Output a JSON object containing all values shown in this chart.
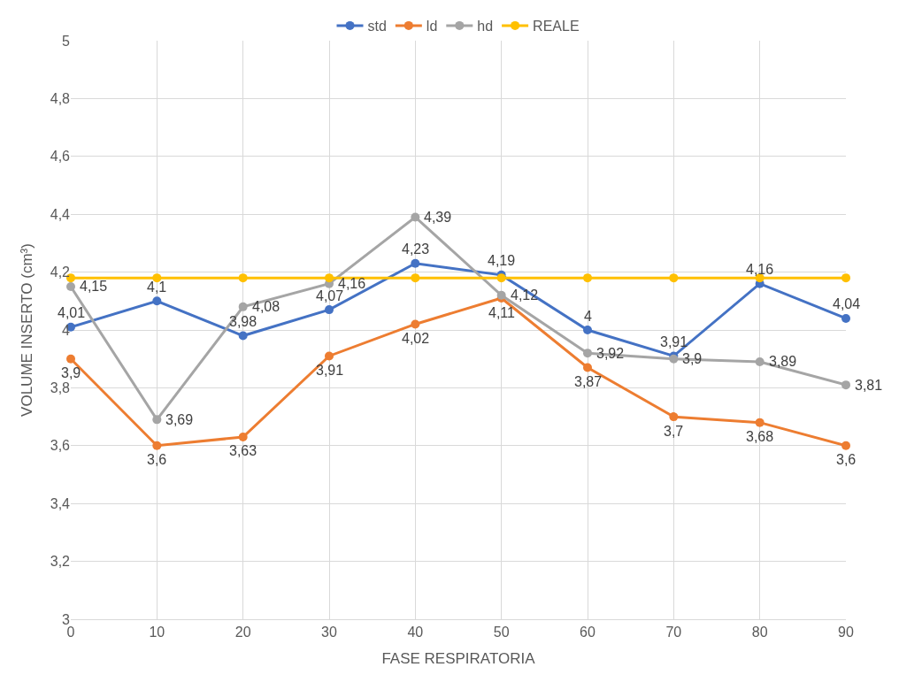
{
  "chart_data": {
    "type": "line",
    "xlabel": "FASE RESPIRATORIA",
    "ylabel": "VOLUME INSERTO (cm³)",
    "x": [
      0,
      10,
      20,
      30,
      40,
      50,
      60,
      70,
      80,
      90
    ],
    "series": [
      {
        "name": "std",
        "color": "#4472c4",
        "values": [
          4.01,
          4.1,
          3.98,
          4.07,
          4.23,
          4.19,
          4,
          3.91,
          4.16,
          4.04
        ],
        "value_labels": [
          "4,01",
          "4,1",
          "3,98",
          "4,07",
          "4,23",
          "4,19",
          "4",
          "3,91",
          "4,16",
          "4,04"
        ]
      },
      {
        "name": "ld",
        "color": "#ed7d31",
        "values": [
          3.9,
          3.6,
          3.63,
          3.91,
          4.02,
          4.11,
          3.87,
          3.7,
          3.68,
          3.6
        ],
        "value_labels": [
          "3,9",
          "3,6",
          "3,63",
          "3,91",
          "4,02",
          "4,11",
          "3,87",
          "3,7",
          "3,68",
          "3,6"
        ]
      },
      {
        "name": "hd",
        "color": "#a5a5a5",
        "values": [
          4.15,
          3.69,
          4.08,
          4.16,
          4.39,
          4.12,
          3.92,
          3.9,
          3.89,
          3.81
        ],
        "value_labels": [
          "4,15",
          "3,69",
          "4,08",
          "4,16",
          "4,39",
          "4,12",
          "3,92",
          "3,9",
          "3,89",
          "3,81"
        ]
      },
      {
        "name": "REALE",
        "color": "#ffc000",
        "values": [
          4.18,
          4.18,
          4.18,
          4.18,
          4.18,
          4.18,
          4.18,
          4.18,
          4.18,
          4.18
        ]
      }
    ],
    "xlim": [
      0,
      90
    ],
    "xticks": [
      0,
      10,
      20,
      30,
      40,
      50,
      60,
      70,
      80,
      90
    ],
    "ylim": [
      3,
      5
    ],
    "yticks": [
      3,
      {
        "value": 3.2,
        "label": "3,2"
      },
      {
        "value": 3.4,
        "label": "3,4"
      },
      {
        "value": 3.6,
        "label": "3,6"
      },
      {
        "value": 3.8,
        "label": "3,8"
      },
      4,
      {
        "value": 4.2,
        "label": "4,2"
      },
      {
        "value": 4.4,
        "label": "4,4"
      },
      {
        "value": 4.6,
        "label": "4,6"
      },
      {
        "value": 4.8,
        "label": "4,8"
      },
      5
    ],
    "grid": true,
    "legend": "top",
    "marker": "circle",
    "line_style": "solid"
  }
}
